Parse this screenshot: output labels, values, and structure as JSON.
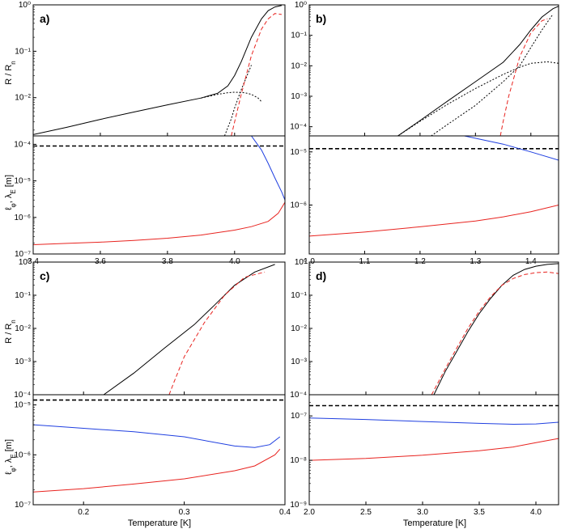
{
  "figure": {
    "xlabel": "Temperature [K]"
  },
  "axis_labels": {
    "r_top_main": "R / R",
    "r_top_sub": "n",
    "l_main": "ℓ",
    "l_sub1": "φ",
    "l_mid": ", λ",
    "l_sub2": "E",
    "l_unit": " [m]"
  },
  "chart_data": [
    {
      "panel": "a)",
      "type": "line",
      "x_range": [
        3.4,
        4.15
      ],
      "x_ticks": [
        3.6,
        3.8,
        4.0
      ],
      "x_tick_labels": [
        "3.4",
        "3.6",
        "3.8",
        "4.0"
      ],
      "top": {
        "ylabel": "R / Rn",
        "y_log_range": [
          0.0015,
          1.0
        ],
        "y_ticks": [
          0.01,
          0.1,
          1.0
        ],
        "y_tick_labels": [
          "10⁻²",
          "10⁻¹",
          "10⁰"
        ],
        "series": [
          {
            "name": "total",
            "color": "#000000",
            "dash": "solid",
            "x": [
              3.4,
              3.5,
              3.6,
              3.7,
              3.8,
              3.9,
              3.95,
              3.98,
              4.0,
              4.02,
              4.05,
              4.08,
              4.1,
              4.12,
              4.14
            ],
            "y": [
              0.0016,
              0.0023,
              0.0034,
              0.0049,
              0.007,
              0.0098,
              0.0125,
              0.018,
              0.03,
              0.06,
              0.2,
              0.5,
              0.75,
              0.9,
              0.97
            ]
          },
          {
            "name": "contribution-1",
            "color": "#000000",
            "dash": "dotted",
            "x": [
              3.9,
              3.95,
              3.98,
              4.0,
              4.03,
              4.05,
              4.07,
              4.08
            ],
            "y": [
              0.0098,
              0.0118,
              0.0128,
              0.0131,
              0.0128,
              0.0118,
              0.0098,
              0.0082
            ]
          },
          {
            "name": "contribution-2",
            "color": "#000000",
            "dash": "dotted",
            "x": [
              3.97,
              3.99,
              4.0,
              4.02,
              4.05
            ],
            "y": [
              0.0015,
              0.0035,
              0.006,
              0.015,
              0.05
            ]
          },
          {
            "name": "fit",
            "color": "#e8231f",
            "dash": "dashed",
            "x": [
              3.99,
              4.0,
              4.02,
              4.05,
              4.08,
              4.1,
              4.12,
              4.14
            ],
            "y": [
              0.0015,
              0.003,
              0.012,
              0.08,
              0.3,
              0.5,
              0.65,
              0.62
            ]
          }
        ]
      },
      "bottom": {
        "ylabel": "ℓφ, λE [m]",
        "y_log_range": [
          1e-07,
          0.00017
        ],
        "y_ticks": [
          1e-07,
          1e-06,
          1e-05,
          0.0001
        ],
        "y_tick_labels": [
          "10⁻⁷",
          "10⁻⁶",
          "10⁻⁵",
          "10⁻⁴"
        ],
        "series": [
          {
            "name": "threshold",
            "color": "#000000",
            "dash": "dashed",
            "x": [
              3.4,
              4.15
            ],
            "y": [
              9e-05,
              9e-05
            ]
          },
          {
            "name": "blue",
            "color": "#1f3fe0",
            "dash": "solid",
            "x": [
              4.05,
              4.08,
              4.1,
              4.12,
              4.14,
              4.15
            ],
            "y": [
              0.00017,
              7e-05,
              3e-05,
              1.2e-05,
              5e-06,
              3e-06
            ]
          },
          {
            "name": "red",
            "color": "#e8231f",
            "dash": "solid",
            "x": [
              3.4,
              3.5,
              3.6,
              3.7,
              3.8,
              3.9,
              4.0,
              4.05,
              4.1,
              4.13,
              4.15
            ],
            "y": [
              1.8e-07,
              1.95e-07,
              2.1e-07,
              2.35e-07,
              2.7e-07,
              3.3e-07,
              4.5e-07,
              5.6e-07,
              7.8e-07,
              1.3e-06,
              2.6e-06
            ]
          }
        ]
      }
    },
    {
      "panel": "b)",
      "type": "line",
      "x_range": [
        1.0,
        1.45
      ],
      "x_ticks": [
        1.1,
        1.2,
        1.3,
        1.4
      ],
      "x_tick_labels": [
        "1.0",
        "1.1",
        "1.2",
        "1.3",
        "1.4"
      ],
      "top": {
        "ylabel": "R / Rn",
        "y_log_range": [
          5e-05,
          1.0
        ],
        "y_ticks": [
          0.0001,
          0.001,
          0.01,
          0.1,
          1.0
        ],
        "y_tick_labels": [
          "10⁻⁴",
          "10⁻³",
          "10⁻²",
          "10⁻¹",
          "10⁰"
        ],
        "series": [
          {
            "name": "total",
            "color": "#000000",
            "dash": "solid",
            "x": [
              1.16,
              1.2,
              1.25,
              1.3,
              1.35,
              1.38,
              1.4,
              1.42,
              1.44,
              1.45
            ],
            "y": [
              5e-05,
              0.00016,
              0.0007,
              0.003,
              0.013,
              0.05,
              0.15,
              0.4,
              0.75,
              0.9
            ]
          },
          {
            "name": "contribution-1",
            "color": "#000000",
            "dash": "dotted",
            "x": [
              1.16,
              1.2,
              1.25,
              1.3,
              1.35,
              1.38,
              1.4,
              1.43,
              1.45
            ],
            "y": [
              5e-05,
              0.00015,
              0.00055,
              0.0018,
              0.0052,
              0.009,
              0.012,
              0.0135,
              0.012
            ]
          },
          {
            "name": "contribution-2",
            "color": "#000000",
            "dash": "dotted",
            "x": [
              1.22,
              1.25,
              1.3,
              1.35,
              1.38,
              1.4,
              1.42,
              1.44
            ],
            "y": [
              5e-05,
              0.00012,
              0.0005,
              0.003,
              0.01,
              0.04,
              0.15,
              0.5
            ]
          },
          {
            "name": "fit",
            "color": "#e8231f",
            "dash": "dashed",
            "x": [
              1.345,
              1.35,
              1.36,
              1.38,
              1.4,
              1.42,
              1.43
            ],
            "y": [
              5e-05,
              0.00015,
              0.001,
              0.02,
              0.12,
              0.3,
              0.35
            ]
          }
        ]
      },
      "bottom": {
        "ylabel": "ℓφ, λE [m]",
        "y_log_range": [
          1.2e-07,
          2e-05
        ],
        "y_ticks": [
          1e-06,
          1e-05
        ],
        "y_tick_labels": [
          "10⁻⁶",
          "10⁻⁵"
        ],
        "series": [
          {
            "name": "threshold",
            "color": "#000000",
            "dash": "dashed",
            "x": [
              1.0,
              1.45
            ],
            "y": [
              1.15e-05,
              1.15e-05
            ]
          },
          {
            "name": "blue",
            "color": "#1f3fe0",
            "dash": "solid",
            "x": [
              1.28,
              1.35,
              1.4,
              1.45
            ],
            "y": [
              2e-05,
              1.4e-05,
              1e-05,
              7e-06
            ]
          },
          {
            "name": "red",
            "color": "#e8231f",
            "dash": "solid",
            "x": [
              1.0,
              1.1,
              1.2,
              1.3,
              1.35,
              1.4,
              1.45
            ],
            "y": [
              2.6e-07,
              3.1e-07,
              3.9e-07,
              5e-07,
              6e-07,
              7.5e-07,
              1e-06
            ]
          }
        ]
      }
    },
    {
      "panel": "c)",
      "type": "line",
      "x_range": [
        0.15,
        0.4
      ],
      "x_ticks": [
        0.2,
        0.3,
        0.4
      ],
      "x_tick_labels": [
        "0.2",
        "0.3",
        "0.4"
      ],
      "top": {
        "ylabel": "R / Rn",
        "y_log_range": [
          0.0001,
          1.0
        ],
        "y_ticks": [
          0.0001,
          0.001,
          0.01,
          0.1,
          1.0
        ],
        "y_tick_labels": [
          "10⁻⁴",
          "10⁻³",
          "10⁻²",
          "10⁻¹",
          "10⁰"
        ],
        "series": [
          {
            "name": "total",
            "color": "#000000",
            "dash": "solid",
            "x": [
              0.22,
              0.25,
              0.28,
              0.31,
              0.33,
              0.35,
              0.37,
              0.39
            ],
            "y": [
              0.0001,
              0.00045,
              0.0025,
              0.013,
              0.05,
              0.2,
              0.5,
              0.85
            ]
          },
          {
            "name": "fit",
            "color": "#e8231f",
            "dash": "dashed",
            "x": [
              0.285,
              0.29,
              0.3,
              0.32,
              0.34,
              0.36,
              0.38
            ],
            "y": [
              0.0001,
              0.00025,
              0.0014,
              0.015,
              0.1,
              0.35,
              0.5
            ]
          }
        ]
      },
      "bottom": {
        "ylabel": "ℓφ, λE [m]",
        "y_log_range": [
          1e-07,
          1.6e-05
        ],
        "y_ticks": [
          1e-07,
          1e-06,
          1e-05
        ],
        "y_tick_labels": [
          "10⁻⁷",
          "10⁻⁶",
          "10⁻⁵"
        ],
        "series": [
          {
            "name": "threshold",
            "color": "#000000",
            "dash": "dashed",
            "x": [
              0.15,
              0.4
            ],
            "y": [
              1.25e-05,
              1.25e-05
            ]
          },
          {
            "name": "blue",
            "color": "#1f3fe0",
            "dash": "solid",
            "x": [
              0.15,
              0.2,
              0.25,
              0.3,
              0.35,
              0.37,
              0.385,
              0.395
            ],
            "y": [
              4e-06,
              3.4e-06,
              2.9e-06,
              2.3e-06,
              1.5e-06,
              1.4e-06,
              1.6e-06,
              2.3e-06
            ]
          },
          {
            "name": "red",
            "color": "#e8231f",
            "dash": "solid",
            "x": [
              0.15,
              0.2,
              0.25,
              0.3,
              0.35,
              0.37,
              0.39,
              0.395
            ],
            "y": [
              1.8e-07,
              2.1e-07,
              2.6e-07,
              3.3e-07,
              4.8e-07,
              6e-07,
              1e-06,
              1.3e-06
            ]
          }
        ]
      }
    },
    {
      "panel": "d)",
      "type": "line",
      "x_range": [
        2.0,
        4.2
      ],
      "x_ticks": [
        2.5,
        3.0,
        3.5,
        4.0
      ],
      "x_tick_labels": [
        "2.0",
        "2.5",
        "3.0",
        "3.5",
        "4.0"
      ],
      "top": {
        "ylabel": "R / Rn",
        "y_log_range": [
          0.0001,
          1.0
        ],
        "y_ticks": [
          0.0001,
          0.001,
          0.01,
          0.1,
          1.0
        ],
        "y_tick_labels": [
          "10⁻⁴",
          "10⁻³",
          "10⁻²",
          "10⁻¹",
          "10⁰"
        ],
        "series": [
          {
            "name": "total",
            "color": "#000000",
            "dash": "solid",
            "x": [
              3.1,
              3.2,
              3.3,
              3.4,
              3.5,
              3.6,
              3.7,
              3.8,
              3.9,
              4.0,
              4.1,
              4.2
            ],
            "y": [
              0.0001,
              0.0005,
              0.002,
              0.008,
              0.028,
              0.08,
              0.2,
              0.4,
              0.6,
              0.75,
              0.85,
              0.9
            ]
          },
          {
            "name": "fit",
            "color": "#e8231f",
            "dash": "dashed",
            "x": [
              3.08,
              3.2,
              3.3,
              3.4,
              3.5,
              3.6,
              3.7,
              3.8,
              3.9,
              4.0,
              4.1,
              4.2
            ],
            "y": [
              0.0001,
              0.0006,
              0.0025,
              0.01,
              0.033,
              0.09,
              0.2,
              0.32,
              0.42,
              0.48,
              0.5,
              0.45
            ]
          }
        ]
      },
      "bottom": {
        "ylabel": "ℓφ, λE [m]",
        "y_log_range": [
          1e-09,
          3e-07
        ],
        "y_ticks": [
          1e-09,
          1e-08,
          1e-07
        ],
        "y_tick_labels": [
          "10⁻⁹",
          "10⁻⁸",
          "10⁻⁷"
        ],
        "series": [
          {
            "name": "threshold",
            "color": "#000000",
            "dash": "dashed",
            "x": [
              2.0,
              4.2
            ],
            "y": [
              1.7e-07,
              1.7e-07
            ]
          },
          {
            "name": "blue",
            "color": "#1f3fe0",
            "dash": "solid",
            "x": [
              2.0,
              2.5,
              3.0,
              3.5,
              3.8,
              4.0,
              4.2
            ],
            "y": [
              9e-08,
              8.3e-08,
              7.5e-08,
              6.8e-08,
              6.5e-08,
              6.6e-08,
              7.2e-08
            ]
          },
          {
            "name": "red",
            "color": "#e8231f",
            "dash": "solid",
            "x": [
              2.0,
              2.5,
              3.0,
              3.5,
              3.8,
              4.0,
              4.2
            ],
            "y": [
              1e-08,
              1.1e-08,
              1.3e-08,
              1.65e-08,
              2e-08,
              2.5e-08,
              3.1e-08
            ]
          }
        ]
      }
    }
  ]
}
